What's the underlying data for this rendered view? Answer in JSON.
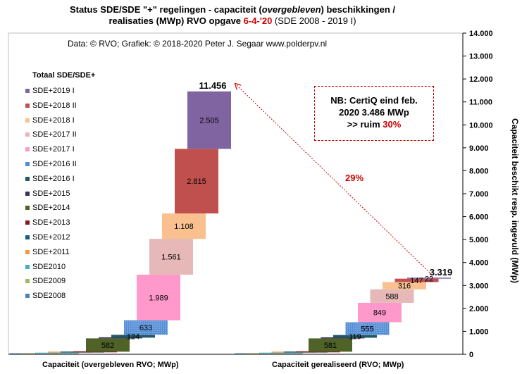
{
  "title": {
    "line1_a": "Status SDE/SDE \"+\" regelingen - capaciteit (",
    "line1_italic": "overgebleven",
    "line1_b": ") beschikkingen /",
    "line2_a": "realisaties (MWp) RVO opgave ",
    "line2_date": "6-4-'20",
    "line2_b": " (SDE 2008 - 2019 I)"
  },
  "credit": "Data: © RVO; Grafiek: © 2018-2020 Peter J. Segaar www.polderpv.nl",
  "note": {
    "line1": "NB: CertiQ eind feb.",
    "line2": "2020 3.486 MWp",
    "line3_a": ">> ruim ",
    "line3_pct": "30%"
  },
  "arrow_label": "29%",
  "y2_label": "Capaciteit beschikt resp. ingevuld (MWp)",
  "legend_title": "Totaal SDE/SDE+",
  "colors": {
    "accent_red": "#cc0000",
    "arrow": "#cc0000"
  },
  "chart_data": {
    "type": "bar",
    "subtype": "stacked-waterfall",
    "categories": [
      "Capaciteit (overgebleven RVO; MWp)",
      "Capaciteit gerealiseerd (RVO; MWp)"
    ],
    "ylim": [
      0,
      14000
    ],
    "yticks": [
      "0",
      "1.000",
      "2.000",
      "3.000",
      "4.000",
      "5.000",
      "6.000",
      "7.000",
      "8.000",
      "9.000",
      "10.000",
      "11.000",
      "12.000",
      "13.000",
      "14.000"
    ],
    "ytick_values": [
      0,
      1000,
      2000,
      3000,
      4000,
      5000,
      6000,
      7000,
      8000,
      9000,
      10000,
      11000,
      12000,
      13000,
      14000
    ],
    "yaxis_side": "right",
    "grid": false,
    "legend_position": "left",
    "series": [
      {
        "name": "SDE2008",
        "color": "#4f81bd",
        "pattern": "dots",
        "values": [
          8,
          8
        ],
        "label": [
          "",
          ""
        ]
      },
      {
        "name": "SDE2009",
        "color": "#9bbb59",
        "pattern": "dots",
        "values": [
          16,
          16
        ],
        "label": [
          "",
          ""
        ]
      },
      {
        "name": "SDE2010",
        "color": "#4bacc6",
        "pattern": "dots",
        "values": [
          46,
          46
        ],
        "label": [
          "",
          ""
        ]
      },
      {
        "name": "SDE+2011",
        "color": "#f79646",
        "pattern": "dots",
        "values": [
          4,
          4
        ],
        "label": [
          "",
          ""
        ]
      },
      {
        "name": "SDE+2012",
        "color": "#1f5c7a",
        "pattern": "",
        "values": [
          10,
          10
        ],
        "label": [
          "",
          ""
        ]
      },
      {
        "name": "SDE+2013",
        "color": "#7f1f1f",
        "pattern": "",
        "values": [
          28,
          28
        ],
        "label": [
          "",
          ""
        ]
      },
      {
        "name": "SDE+2014",
        "color": "#4f6228",
        "pattern": "",
        "values": [
          582,
          581
        ],
        "label": [
          "582",
          "581"
        ]
      },
      {
        "name": "SDE+2015",
        "color": "#3f3151",
        "pattern": "",
        "values": [
          30,
          28
        ],
        "label": [
          "",
          ""
        ]
      },
      {
        "name": "SDE+2016 I",
        "color": "#215967",
        "pattern": "",
        "values": [
          124,
          119
        ],
        "label": [
          "124",
          "119"
        ]
      },
      {
        "name": "SDE+2016 II",
        "color": "#538dd5",
        "pattern": "dots",
        "values": [
          633,
          555
        ],
        "label": [
          "633",
          "555"
        ]
      },
      {
        "name": "SDE+2017 I",
        "color": "#ff99cc",
        "pattern": "",
        "values": [
          1989,
          849
        ],
        "label": [
          "1.989",
          "849"
        ]
      },
      {
        "name": "SDE+2017 II",
        "color": "#e6b9b8",
        "pattern": "",
        "values": [
          1561,
          588
        ],
        "label": [
          "1.561",
          "588"
        ]
      },
      {
        "name": "SDE+2018 I",
        "color": "#fac090",
        "pattern": "",
        "values": [
          1108,
          316
        ],
        "label": [
          "1.108",
          "316"
        ]
      },
      {
        "name": "SDE+2018 II",
        "color": "#c0504d",
        "pattern": "",
        "values": [
          2815,
          147
        ],
        "label": [
          "2.815",
          "147"
        ]
      },
      {
        "name": "SDE+2019 I",
        "color": "#8064a2",
        "pattern": "",
        "values": [
          2505,
          22
        ],
        "label": [
          "2.505",
          "22"
        ]
      }
    ],
    "totals": [
      11456,
      3319
    ],
    "total_labels": [
      "11.456",
      "3.319"
    ]
  }
}
